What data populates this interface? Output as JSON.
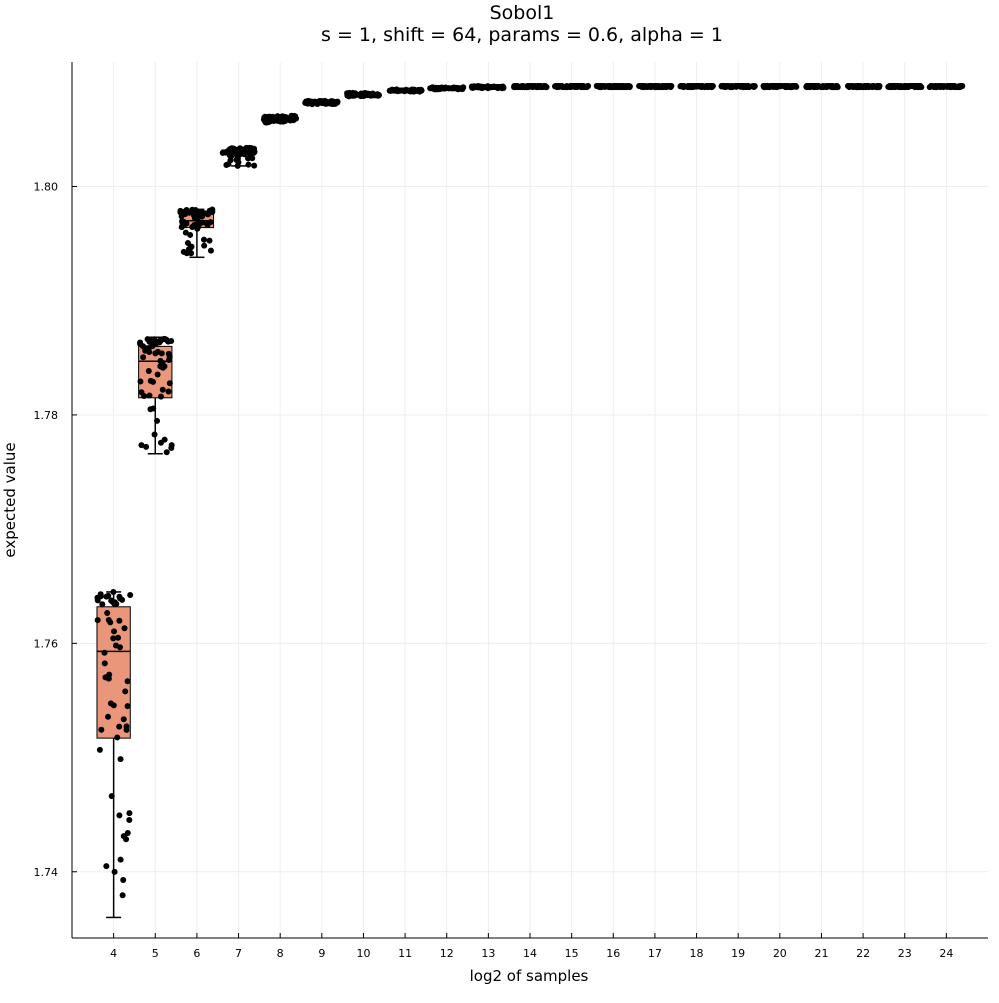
{
  "chart_data": {
    "type": "box",
    "title": "Sobol1",
    "subtitle": "s = 1, shift = 64, params = 0.6, alpha = 1",
    "xlabel": "log2 of samples",
    "ylabel": "expected value",
    "xlim": [
      3,
      25
    ],
    "ylim": [
      1.7342,
      1.8109
    ],
    "xticks": [
      4,
      5,
      6,
      7,
      8,
      9,
      10,
      11,
      12,
      13,
      14,
      15,
      16,
      17,
      18,
      19,
      20,
      21,
      22,
      23,
      24
    ],
    "yticks": [
      1.74,
      1.76,
      1.78,
      1.8
    ],
    "ytick_labels": [
      "1.74",
      "1.76",
      "1.78",
      "1.80"
    ],
    "grid": true,
    "legend": "none",
    "colors": {
      "box_fill": "#E9967A",
      "box_edge": "#000000",
      "points": "#000000",
      "accent": "#1E90FF",
      "grid": "#eeeeee"
    },
    "boxes": [
      {
        "x": 4,
        "min": 1.736,
        "q1": 1.7517,
        "median": 1.7593,
        "q3": 1.7632,
        "max": 1.7645
      },
      {
        "x": 5,
        "min": 1.7766,
        "q1": 1.7815,
        "median": 1.7847,
        "q3": 1.786,
        "max": 1.7868
      },
      {
        "x": 6,
        "min": 1.7938,
        "q1": 1.7964,
        "median": 1.797,
        "q3": 1.7977,
        "max": 1.798
      },
      {
        "x": 7,
        "min": 1.8018,
        "q1": 1.8028,
        "median": 1.803,
        "q3": 1.8032,
        "max": 1.8034
      },
      {
        "x": 8,
        "min": 1.8056,
        "q1": 1.8059,
        "median": 1.806,
        "q3": 1.8061,
        "max": 1.8062
      },
      {
        "x": 9,
        "min": 1.8072,
        "q1": 1.8073,
        "median": 1.8073,
        "q3": 1.8074,
        "max": 1.8075
      },
      {
        "x": 10,
        "min": 1.8079,
        "q1": 1.808,
        "median": 1.808,
        "q3": 1.8081,
        "max": 1.8082
      },
      {
        "x": 11,
        "min": 1.8083,
        "q1": 1.8084,
        "median": 1.8084,
        "q3": 1.8084,
        "max": 1.8085
      },
      {
        "x": 12,
        "min": 1.8085,
        "q1": 1.8086,
        "median": 1.8086,
        "q3": 1.8086,
        "max": 1.8087
      },
      {
        "x": 13,
        "min": 1.8086,
        "q1": 1.8087,
        "median": 1.8087,
        "q3": 1.8087,
        "max": 1.8088
      },
      {
        "x": 14,
        "min": 1.8087,
        "q1": 1.8087,
        "median": 1.8087,
        "q3": 1.8088,
        "max": 1.8088
      },
      {
        "x": 15,
        "min": 1.8087,
        "q1": 1.8087,
        "median": 1.8088,
        "q3": 1.8088,
        "max": 1.8088
      },
      {
        "x": 16,
        "min": 1.8087,
        "q1": 1.8087,
        "median": 1.8088,
        "q3": 1.8088,
        "max": 1.8088
      },
      {
        "x": 17,
        "min": 1.8087,
        "q1": 1.8087,
        "median": 1.8088,
        "q3": 1.8088,
        "max": 1.8088
      },
      {
        "x": 18,
        "min": 1.8087,
        "q1": 1.8087,
        "median": 1.8088,
        "q3": 1.8088,
        "max": 1.8088
      },
      {
        "x": 19,
        "min": 1.8087,
        "q1": 1.8087,
        "median": 1.8088,
        "q3": 1.8088,
        "max": 1.8088
      },
      {
        "x": 20,
        "min": 1.8087,
        "q1": 1.8087,
        "median": 1.8088,
        "q3": 1.8088,
        "max": 1.8088
      },
      {
        "x": 21,
        "min": 1.8087,
        "q1": 1.8087,
        "median": 1.8088,
        "q3": 1.8088,
        "max": 1.8088
      },
      {
        "x": 22,
        "min": 1.8087,
        "q1": 1.8087,
        "median": 1.8088,
        "q3": 1.8088,
        "max": 1.8088
      },
      {
        "x": 23,
        "min": 1.8087,
        "q1": 1.8087,
        "median": 1.8088,
        "q3": 1.8088,
        "max": 1.8088
      },
      {
        "x": 24,
        "min": 1.8087,
        "q1": 1.8087,
        "median": 1.8088,
        "q3": 1.8088,
        "max": 1.8088
      }
    ]
  }
}
